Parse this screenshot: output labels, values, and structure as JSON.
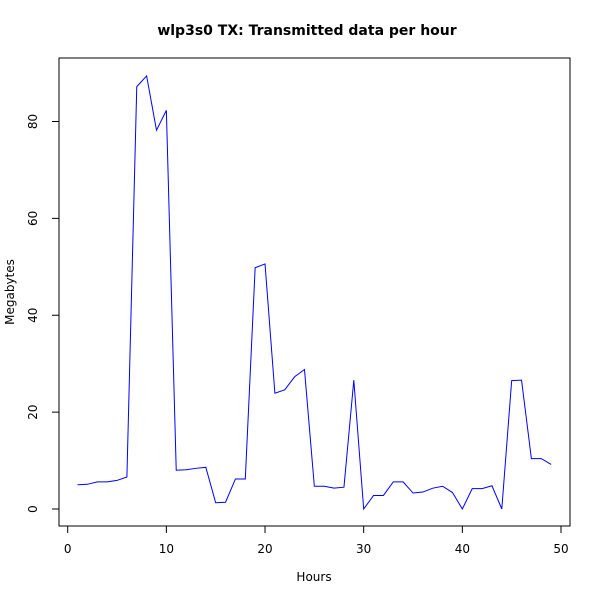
{
  "chart_data": {
    "type": "line",
    "title": "wlp3s0 TX: Transmitted data per hour",
    "xlabel": "Hours",
    "ylabel": "Megabytes",
    "xlim": [
      0,
      50
    ],
    "ylim": [
      0,
      90
    ],
    "xticks": [
      "0",
      "10",
      "20",
      "30",
      "40",
      "50"
    ],
    "yticks": [
      "0",
      "20",
      "40",
      "60",
      "80"
    ],
    "grid": false,
    "legend": "none",
    "series_color": "#0000ff",
    "series": [
      {
        "x": [
          1,
          2,
          3,
          4,
          5,
          6,
          7,
          8,
          9,
          10,
          11,
          12,
          13,
          14,
          15,
          16,
          17,
          18,
          19,
          20,
          21,
          22,
          23,
          24,
          25,
          26,
          27,
          28,
          29,
          30,
          31,
          32,
          33,
          34,
          35,
          36,
          37,
          38,
          39,
          40,
          41,
          42,
          43,
          44,
          45,
          46,
          47,
          48,
          49
        ],
        "values": [
          5.0,
          5.1,
          5.6,
          5.6,
          5.9,
          6.6,
          87.2,
          89.4,
          78.2,
          82.3,
          8.0,
          8.1,
          8.4,
          8.6,
          1.3,
          1.4,
          6.2,
          6.2,
          49.8,
          50.6,
          23.9,
          24.6,
          27.3,
          28.8,
          4.7,
          4.7,
          4.3,
          4.5,
          26.6,
          0.0,
          2.8,
          2.8,
          5.6,
          5.6,
          3.3,
          3.5,
          4.3,
          4.7,
          3.4,
          0.0,
          4.2,
          4.2,
          4.8,
          0.0,
          26.5,
          26.6,
          10.4,
          10.4,
          9.2
        ]
      }
    ]
  }
}
